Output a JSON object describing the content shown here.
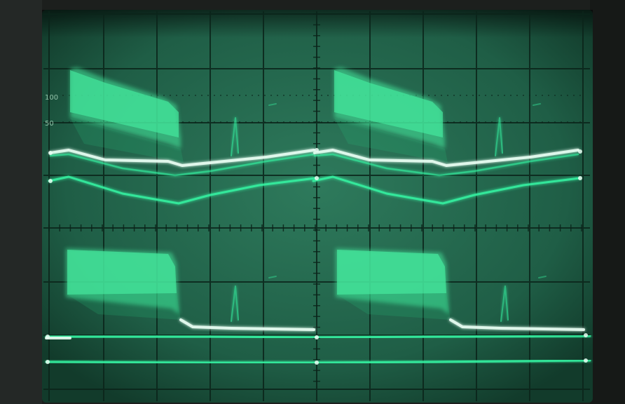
{
  "photo": {
    "subject": "oscilloscope-crt-display",
    "colors": {
      "bezel": "#1c1f1d",
      "bezel_edge": "#2c302d",
      "screen": "#1f5e46",
      "screen_center": "#2b7257",
      "graticule": "#0b241a",
      "trace": "#36f5a3",
      "trace_glow": "#27c97f",
      "trace_bright": "#eafff4",
      "envelope": "#45ec9f"
    }
  },
  "graticule": {
    "labels": [
      "100",
      "50"
    ]
  }
}
